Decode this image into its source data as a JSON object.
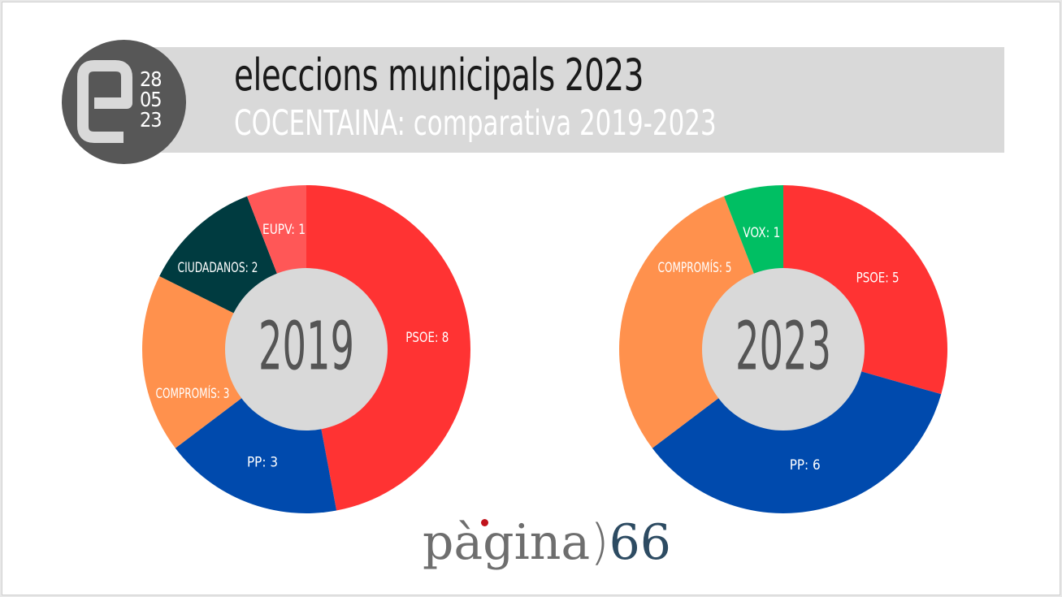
{
  "header": {
    "title": "eleccions municipals 2023",
    "subtitle": "COCENTAINA: comparativa 2019-2023",
    "logo": {
      "letter": "e",
      "date_lines": [
        "28",
        "05",
        "23"
      ]
    }
  },
  "chart_data": [
    {
      "type": "pie",
      "title": "2019",
      "center_label": "2019",
      "slices": [
        {
          "name": "PSOE",
          "value": 8,
          "label": "PSOE: 8",
          "color": "#ff3333"
        },
        {
          "name": "PP",
          "value": 3,
          "label": "PP: 3",
          "color": "#004aad"
        },
        {
          "name": "COMPROMÍS",
          "value": 3,
          "label": "COMPROMÍS: 3",
          "color": "#ff914d"
        },
        {
          "name": "CIUDADANOS",
          "value": 2,
          "label": "CIUDADANOS: 2",
          "color": "#003b40"
        },
        {
          "name": "EUPV",
          "value": 1,
          "label": "EUPV: 1",
          "color": "#ff5757"
        }
      ]
    },
    {
      "type": "pie",
      "title": "2023",
      "center_label": "2023",
      "slices": [
        {
          "name": "PSOE",
          "value": 5,
          "label": "PSOE: 5",
          "color": "#ff3333"
        },
        {
          "name": "PP",
          "value": 6,
          "label": "PP: 6",
          "color": "#004aad"
        },
        {
          "name": "COMPROMÍS",
          "value": 5,
          "label": "COMPROMÍS: 5",
          "color": "#ff914d"
        },
        {
          "name": "VOX",
          "value": 1,
          "label": "VOX: 1",
          "color": "#00bf63"
        }
      ]
    }
  ],
  "footer": {
    "word": "pàgina",
    "bracket": ")",
    "number": "66"
  },
  "colors": {
    "banner": "#d9d9d9",
    "logo_circle": "#575757",
    "hole": "#d9d9d9",
    "center_text": "#555555"
  }
}
